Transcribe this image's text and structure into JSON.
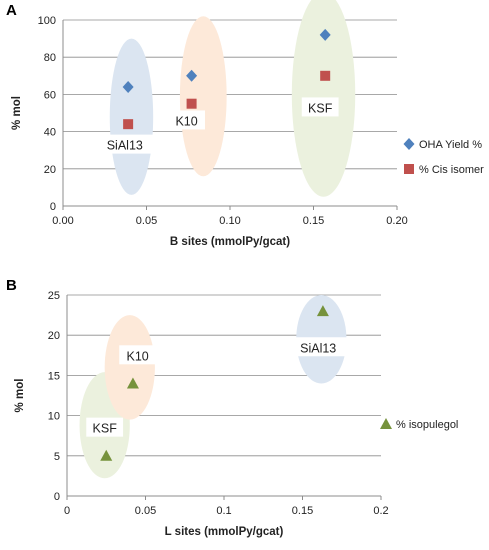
{
  "chart_data": [
    {
      "type": "scatter",
      "panel_label": "A",
      "xlabel": "B sites (mmolPy/gcat)",
      "ylabel": "% mol",
      "xlim": [
        0,
        0.2
      ],
      "ylim": [
        0,
        100
      ],
      "x_ticks": [
        "0.00",
        "0.05",
        "0.10",
        "0.15",
        "0.20"
      ],
      "y_ticks": [
        "0",
        "20",
        "40",
        "60",
        "80",
        "100"
      ],
      "grid": "horizontal",
      "legend_position": "right",
      "series": [
        {
          "name": "OHA Yield %",
          "marker": "diamond",
          "color": "#4f81bd",
          "points": [
            {
              "x": 0.039,
              "y": 64
            },
            {
              "x": 0.077,
              "y": 70
            },
            {
              "x": 0.157,
              "y": 92
            }
          ]
        },
        {
          "name": "% Cis isomer",
          "marker": "square",
          "color": "#c0504d",
          "points": [
            {
              "x": 0.039,
              "y": 44
            },
            {
              "x": 0.077,
              "y": 55
            },
            {
              "x": 0.157,
              "y": 70
            }
          ]
        }
      ],
      "clusters": [
        {
          "label": "SiAl13",
          "color": "#dbe5f1",
          "center": {
            "x": 0.041,
            "y": 48
          },
          "radius": {
            "x": 0.013,
            "y": 42
          },
          "label_at": {
            "x": 0.037,
            "y": 33
          }
        },
        {
          "label": "K10",
          "color": "#fde9d9",
          "center": {
            "x": 0.084,
            "y": 59
          },
          "radius": {
            "x": 0.014,
            "y": 43
          },
          "label_at": {
            "x": 0.074,
            "y": 46
          }
        },
        {
          "label": "KSF",
          "color": "#ebf1de",
          "center": {
            "x": 0.156,
            "y": 60
          },
          "radius": {
            "x": 0.019,
            "y": 55
          },
          "label_at": {
            "x": 0.154,
            "y": 53
          }
        }
      ]
    },
    {
      "type": "scatter",
      "panel_label": "B",
      "xlabel": "L sites (mmolPy/gcat)",
      "ylabel": "% mol",
      "xlim": [
        0,
        0.2
      ],
      "ylim": [
        0,
        25
      ],
      "x_ticks": [
        "0",
        "0.05",
        "0.1",
        "0.15",
        "0.2"
      ],
      "y_ticks": [
        "0",
        "5",
        "10",
        "15",
        "20",
        "25"
      ],
      "grid": "horizontal",
      "legend_position": "right",
      "series": [
        {
          "name": "% isopulegol",
          "marker": "triangle",
          "color": "#76923c",
          "points": [
            {
              "x": 0.025,
              "y": 5
            },
            {
              "x": 0.042,
              "y": 14
            },
            {
              "x": 0.163,
              "y": 23
            }
          ]
        }
      ],
      "clusters": [
        {
          "label": "KSF",
          "color": "#ebf1de",
          "center": {
            "x": 0.024,
            "y": 8.8
          },
          "radius": {
            "x": 0.016,
            "y": 6.6
          },
          "label_at": {
            "x": 0.024,
            "y": 8.5
          }
        },
        {
          "label": "K10",
          "color": "#fde9d9",
          "center": {
            "x": 0.04,
            "y": 16
          },
          "radius": {
            "x": 0.016,
            "y": 6.5
          },
          "label_at": {
            "x": 0.045,
            "y": 17.5
          }
        },
        {
          "label": "SiAl13",
          "color": "#dbe5f1",
          "center": {
            "x": 0.162,
            "y": 19.5
          },
          "radius": {
            "x": 0.016,
            "y": 5.5
          },
          "label_at": {
            "x": 0.16,
            "y": 18.5
          }
        }
      ]
    }
  ]
}
